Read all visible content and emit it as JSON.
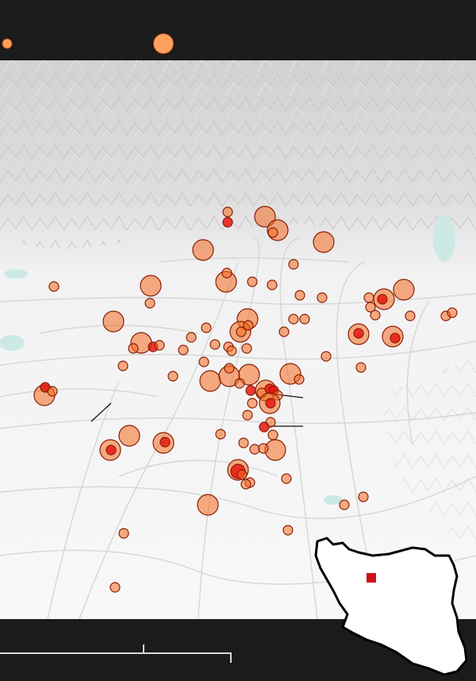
{
  "legend": {
    "size_small_icon": "circle-small-icon",
    "size_large_icon": "circle-large-icon",
    "fill_color": "#fea15e"
  },
  "markers": {
    "fill_color": "#f46a1f",
    "fill_opacity": 0.55,
    "stroke_color": "#8a1d06",
    "highlight_color": "#e8160f"
  },
  "scale_bar": {
    "color": "#d8d8d8"
  },
  "inset": {
    "country_fill": "#ffffff",
    "outline": "#000000",
    "location_marker_color": "#d0111b"
  },
  "colors": {
    "background": "#1b1b1b",
    "terrain": "#d4d4d4",
    "roads": "#d6d6d6",
    "water": "#cde9e6"
  }
}
